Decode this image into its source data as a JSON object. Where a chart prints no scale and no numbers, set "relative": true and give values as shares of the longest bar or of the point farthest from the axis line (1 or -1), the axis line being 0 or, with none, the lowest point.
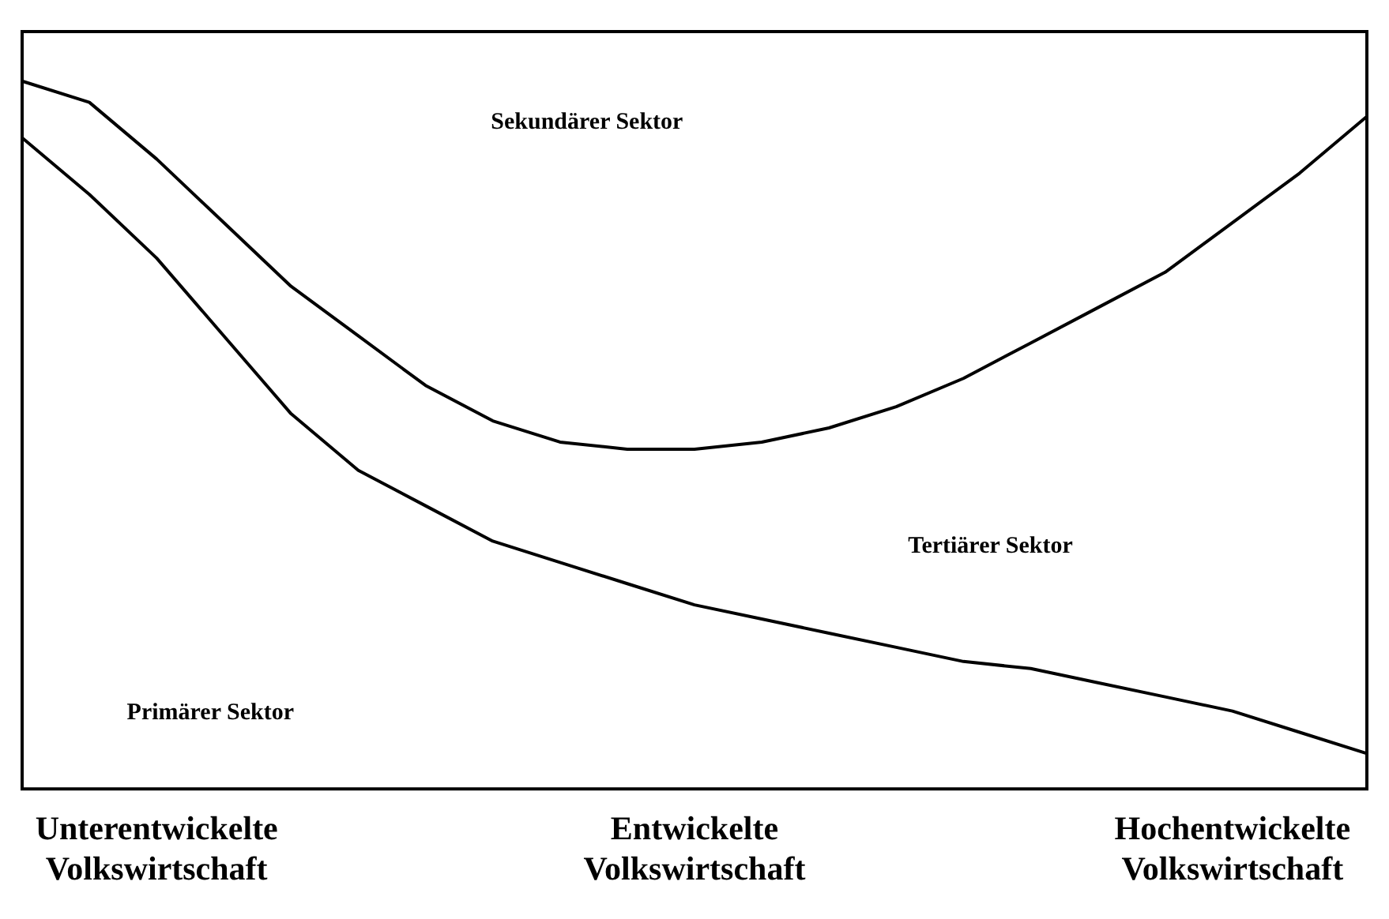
{
  "chart_data": {
    "type": "line",
    "relative": true,
    "grid": false,
    "legend": false,
    "marker": "none",
    "line_style": "solid",
    "tick_labels": "x",
    "categories": [
      null,
      null,
      "Unterentwickelte Volkswirtschaft",
      null,
      null,
      null,
      null,
      null,
      null,
      null,
      "Entwickelte Volkswirtschaft",
      null,
      null,
      null,
      null,
      null,
      null,
      null,
      "Hochentwickelte Volkswirtschaft",
      null,
      null
    ],
    "series": [
      {
        "color": "#000000",
        "values": [
          1,
          0.97,
          0.89,
          0.8,
          0.71,
          0.64,
          0.57,
          0.52,
          0.49,
          0.48,
          0.48,
          0.49,
          0.51,
          0.54,
          0.58,
          0.63,
          0.68,
          0.73,
          0.8,
          0.87,
          0.95
        ]
      },
      {
        "color": "#000000",
        "values": [
          0.92,
          0.84,
          0.75,
          0.64,
          0.53,
          0.45,
          0.4,
          0.35,
          0.32,
          0.29,
          0.26,
          0.24,
          0.22,
          0.2,
          0.18,
          0.17,
          0.15,
          0.13,
          0.11,
          0.08,
          0.05
        ]
      }
    ],
    "annotations": [
      "Sekundärer Sektor",
      "Tertiärer Sektor",
      "Primärer Sektor"
    ]
  }
}
